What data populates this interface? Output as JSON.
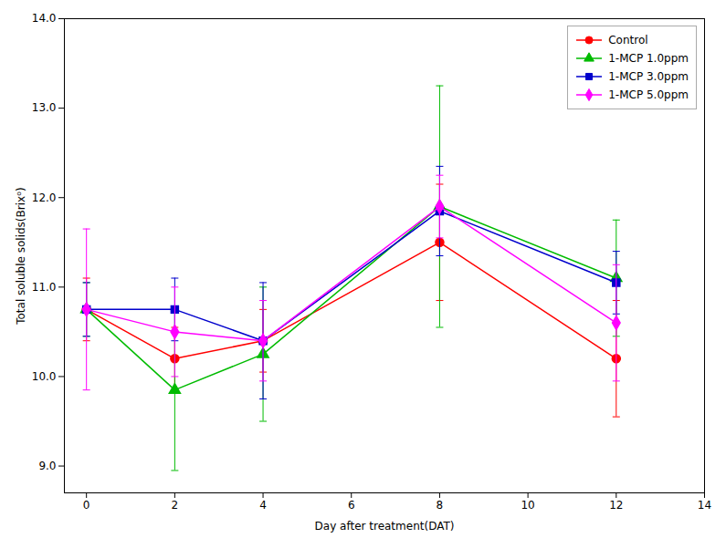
{
  "chart_data": {
    "type": "line",
    "x": [
      0,
      2,
      4,
      8,
      12
    ],
    "series": [
      {
        "name": "Control",
        "color": "#ff0000",
        "marker": "circle",
        "values": [
          10.75,
          10.2,
          10.4,
          11.5,
          10.2
        ],
        "yerr": [
          0.35,
          0.35,
          0.35,
          0.65,
          0.65
        ]
      },
      {
        "name": "1-MCP 1.0ppm",
        "color": "#00bb00",
        "marker": "triangle",
        "values": [
          10.75,
          9.85,
          10.25,
          11.9,
          11.1
        ],
        "yerr": [
          0.3,
          0.9,
          0.75,
          1.35,
          0.65
        ]
      },
      {
        "name": "1-MCP 3.0ppm",
        "color": "#0000cc",
        "marker": "square",
        "values": [
          10.75,
          10.75,
          10.4,
          11.85,
          11.05
        ],
        "yerr": [
          0.3,
          0.35,
          0.65,
          0.5,
          0.35
        ]
      },
      {
        "name": "1-MCP 5.0ppm",
        "color": "#ff00ff",
        "marker": "diamond",
        "values": [
          10.75,
          10.5,
          10.4,
          11.9,
          10.6
        ],
        "yerr": [
          0.9,
          0.5,
          0.45,
          0.35,
          0.65
        ]
      }
    ],
    "xlabel": "Day after treatment(DAT)",
    "ylabel": "Total soluble solids(Brixᵒ)",
    "xlim": [
      -0.5,
      14
    ],
    "ylim": [
      8.7,
      14
    ],
    "xticks": [
      0,
      2,
      4,
      6,
      8,
      10,
      12,
      14
    ],
    "yticks": [
      9,
      10,
      11,
      12,
      13,
      14
    ],
    "grid": false,
    "legend": "upper right"
  }
}
